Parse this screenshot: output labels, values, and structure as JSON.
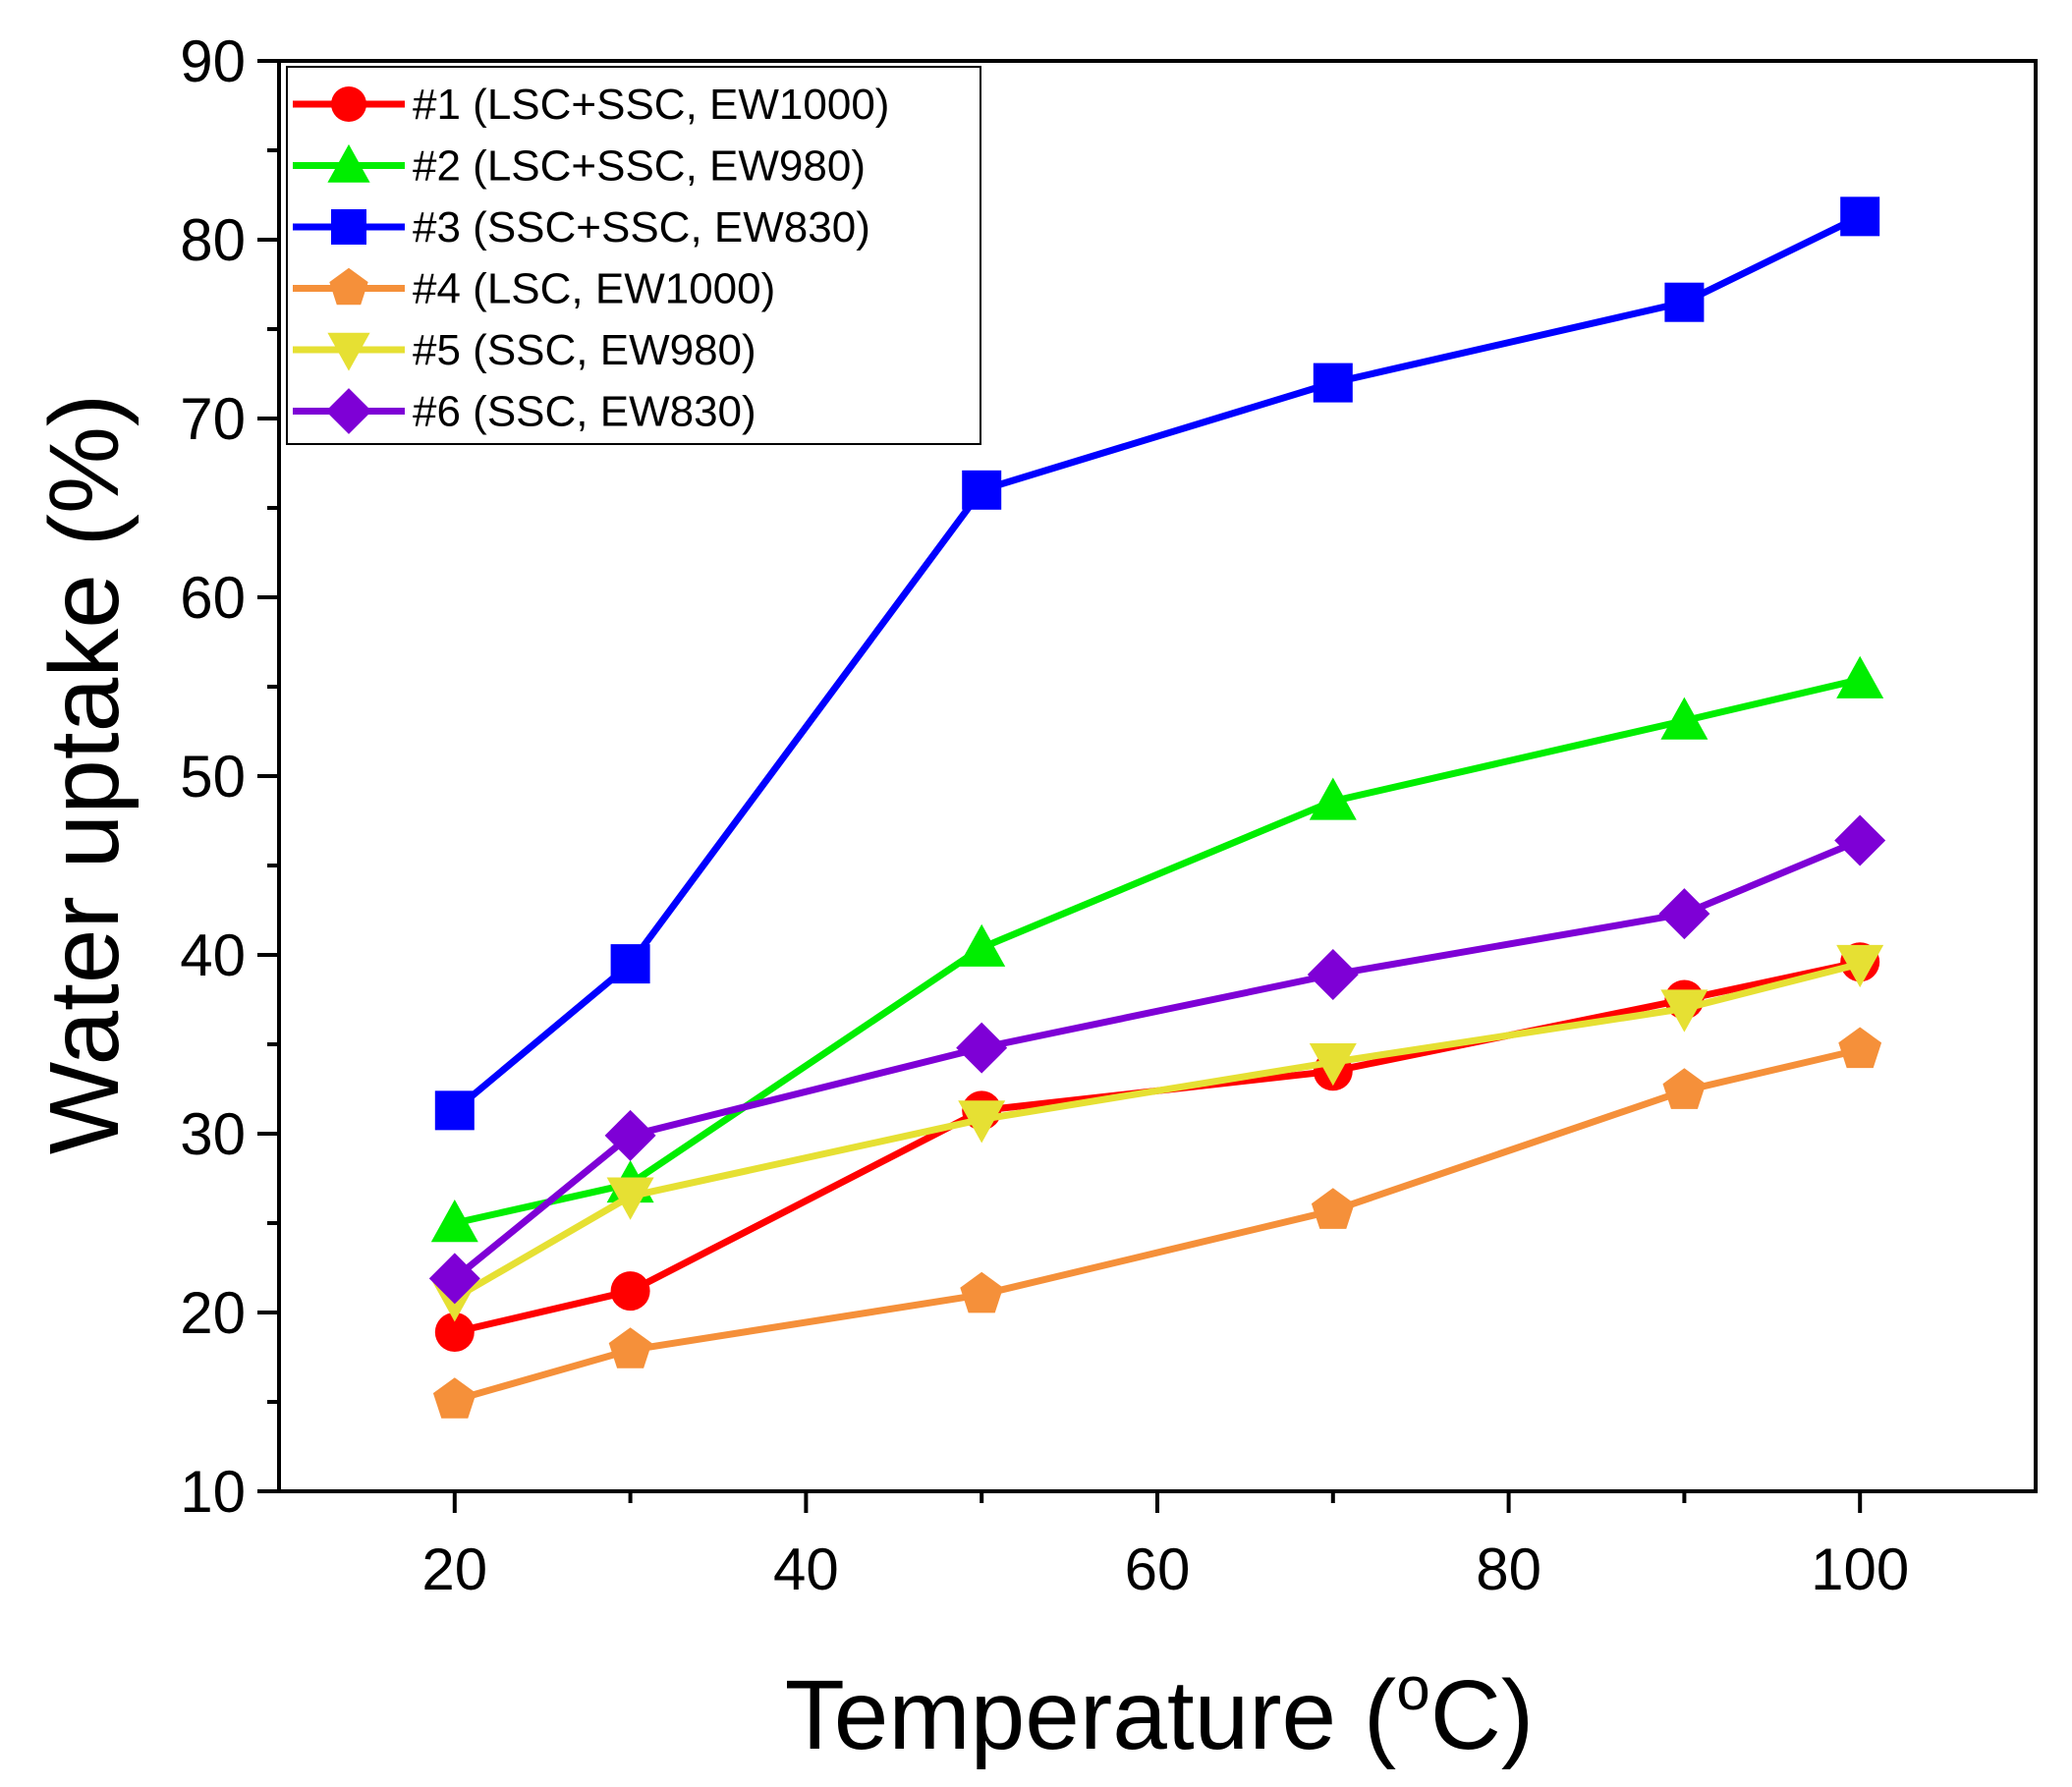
{
  "chart_data": {
    "type": "line",
    "xlabel": "Temperature (",
    "xlabel_sup": "o",
    "xlabel_end": "C)",
    "ylabel": "Water uptake (%)",
    "xlim": [
      10,
      110
    ],
    "ylim": [
      10,
      90
    ],
    "xticks": [
      20,
      40,
      60,
      80,
      100
    ],
    "yticks": [
      10,
      20,
      30,
      40,
      50,
      60,
      70,
      80,
      90
    ],
    "grid": false,
    "legend_position": "top-left",
    "x": [
      20,
      30,
      50,
      70,
      90,
      100
    ],
    "series": [
      {
        "name": "#1 (LSC+SSC, EW1000)",
        "color": "#ff0000",
        "marker": "circle",
        "values": [
          18.9,
          21.2,
          31.3,
          33.5,
          37.5,
          39.6
        ]
      },
      {
        "name": "#2 (LSC+SSC, EW980)",
        "color": "#00ee00",
        "marker": "triangle-up",
        "values": [
          25.0,
          27.2,
          40.4,
          48.6,
          53.1,
          55.4
        ]
      },
      {
        "name": "#3 (SSC+SSC, EW830)",
        "color": "#0000ff",
        "marker": "square",
        "values": [
          31.3,
          39.5,
          66.0,
          72.0,
          76.5,
          81.3
        ]
      },
      {
        "name": "#4 (LSC, EW1000)",
        "color": "#f5903a",
        "marker": "pentagon",
        "values": [
          15.1,
          17.9,
          21.0,
          25.7,
          32.4,
          34.7
        ]
      },
      {
        "name": "#5 (SSC, EW980)",
        "color": "#e6e033",
        "marker": "triangle-down",
        "values": [
          20.8,
          26.5,
          30.8,
          34.0,
          37.0,
          39.5
        ]
      },
      {
        "name": "#6 (SSC, EW830)",
        "color": "#7e00d6",
        "marker": "diamond",
        "values": [
          21.9,
          29.9,
          34.8,
          38.9,
          42.3,
          46.4
        ]
      }
    ]
  }
}
